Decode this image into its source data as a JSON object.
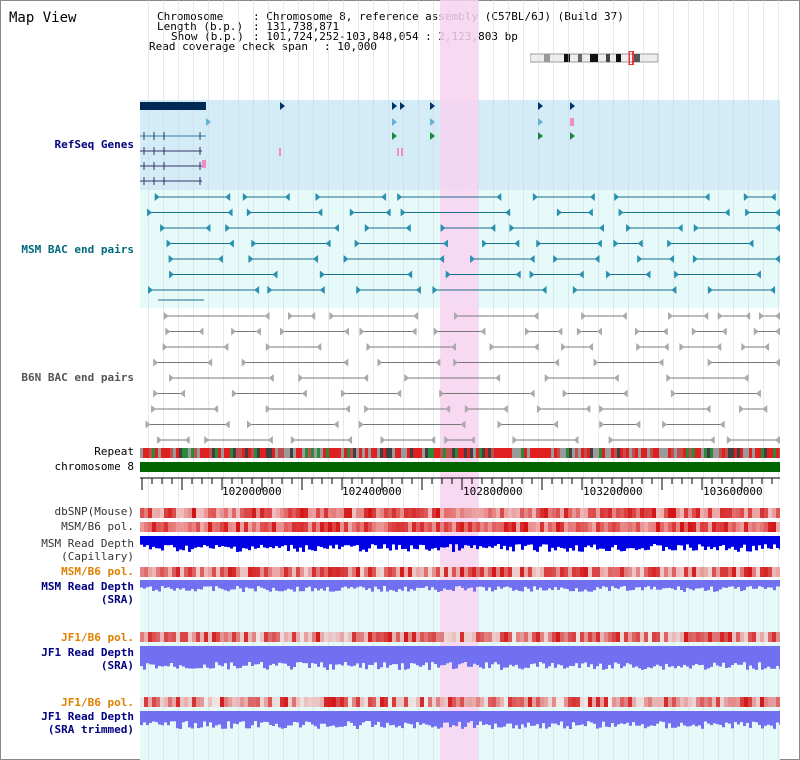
{
  "title": "Map View",
  "header": {
    "chromosome_key": "Chromosome",
    "chromosome_val": ": Chromosome 8, reference assembly (C57BL/6J) (Build 37)",
    "length_key": "Length (b.p.)",
    "length_val": ": 131,738,871",
    "show_key": "Show (b.p.)",
    "show_val": ": 101,724,252-103,848,054 : 2,123,803 bp",
    "coverage_key": "Read coverage check span",
    "coverage_val": ": 10,000"
  },
  "tracks": {
    "refseq": "RefSeq Genes",
    "msm_bac": "MSM BAC end pairs",
    "b6n_bac": "B6N BAC end pairs",
    "repeat": "Repeat",
    "chromosome": "chromosome 8",
    "dbsnp": "dbSNP(Mouse)",
    "msm_b6_pol": "MSM/B6 pol.",
    "msm_read_depth_cap": "MSM Read Depth\n(Capillary)",
    "msm_b6_pol2": "MSM/B6 pol.",
    "msm_read_depth_sra": "MSM Read Depth\n(SRA)",
    "jf1_b6_pol": "JF1/B6 pol.",
    "jf1_read_depth_sra": "JF1 Read Depth\n(SRA)",
    "jf1_b6_pol2": "JF1/B6 pol.",
    "jf1_read_depth_trimmed": "JF1 Read Depth\n(SRA trimmed)"
  },
  "ruler": {
    "ticks": [
      "102000000",
      "102400000",
      "102800000",
      "103200000",
      "103600000"
    ]
  },
  "colors": {
    "refseq_bg": "#d4ecf8",
    "msm_bac_bg": "#e6fafa",
    "highlight": "#f8d2f0",
    "chromosome_bar": "#006400",
    "label_dark": "#000080",
    "label_teal": "#006a7a",
    "label_gray": "#555555",
    "label_orange": "#e08000",
    "depth_capillary": "#0000e6",
    "depth_sra": "#7070f0"
  }
}
